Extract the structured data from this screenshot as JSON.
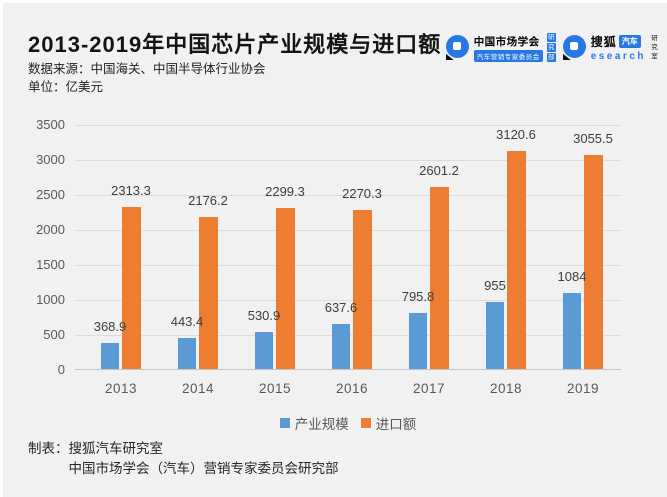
{
  "header": {
    "title": "2013-2019年中国芯片产业规模与进口额",
    "source": "数据来源：中国海关、中国半导体行业协会",
    "unit": "单位：亿美元"
  },
  "logos": {
    "market_society": {
      "name": "中国市场学会",
      "subtitle": "汽车营销专家委员会",
      "dept": [
        "研",
        "究",
        "部"
      ]
    },
    "sohu": {
      "brand": "搜狐",
      "badge": "汽车",
      "research_text": "esearch",
      "dept": [
        "研",
        "究",
        "室"
      ]
    }
  },
  "chart_data": {
    "type": "bar",
    "title": "2013-2019年中国芯片产业规模与进口额",
    "unit": "亿美元",
    "categories": [
      "2013",
      "2014",
      "2015",
      "2016",
      "2017",
      "2018",
      "2019"
    ],
    "series": [
      {
        "name": "产业规模",
        "color": "#5b9bd5",
        "values": [
          368.9,
          443.4,
          530.9,
          637.6,
          795.8,
          955,
          1084
        ]
      },
      {
        "name": "进口额",
        "color": "#ed7d31",
        "values": [
          2313.3,
          2176.2,
          2299.3,
          2270.3,
          2601.2,
          3120.6,
          3055.5
        ]
      }
    ],
    "ylim": [
      0,
      3500
    ],
    "ytick_step": 500,
    "grid": true,
    "legend_position": "bottom",
    "xlabel": "",
    "ylabel": ""
  },
  "footer": {
    "label": "制表：",
    "line1": "搜狐汽车研究室",
    "line2": "中国市场学会（汽车）营销专家委员会研究部"
  },
  "colors": {
    "background": "#f1f1f2",
    "series_scale": "#5b9bd5",
    "series_import": "#ed7d31",
    "logo_blue": "#2778e5",
    "grid": "#dcdcdd",
    "axis": "#c6c6c8",
    "label_text": "#3d3d3d",
    "axis_text": "#595959"
  }
}
